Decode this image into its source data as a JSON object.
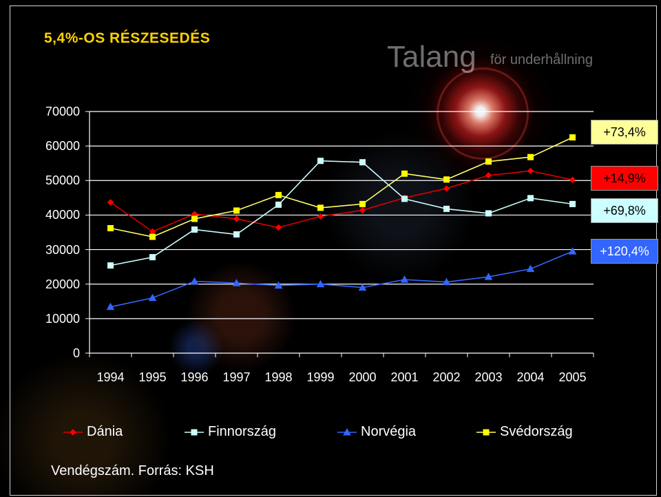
{
  "slide": {
    "title": "5,4%-OS RÉSZESEDÉS",
    "logo_text": "Talang",
    "logo_sub": "för underhållning",
    "footnote": "Vendégszám. Forrás: KSH"
  },
  "annotations": [
    {
      "text": "+73,4%",
      "bg": "#ffff99",
      "color": "#000000"
    },
    {
      "text": "+14,9%",
      "bg": "#ff0000",
      "color": "#000000"
    },
    {
      "text": "+69,8%",
      "bg": "#ccffff",
      "color": "#000000"
    },
    {
      "text": "+120,4%",
      "bg": "#3366ff",
      "color": "#ffffff"
    }
  ],
  "chart_data": {
    "type": "line",
    "categories": [
      "1994",
      "1995",
      "1996",
      "1997",
      "1998",
      "1999",
      "2000",
      "2001",
      "2002",
      "2003",
      "2004",
      "2005"
    ],
    "ylim": [
      0,
      70000
    ],
    "yticks": [
      "0",
      "10000",
      "20000",
      "30000",
      "40000",
      "50000",
      "60000",
      "70000"
    ],
    "grid": true,
    "legend_position": "bottom",
    "series": [
      {
        "name": "Dánia",
        "color": "#ff0000",
        "line_color": "#e00000",
        "marker": "diamond",
        "values": [
          43700,
          35200,
          40300,
          38900,
          36400,
          39600,
          41400,
          45000,
          47700,
          51500,
          52800,
          50200
        ]
      },
      {
        "name": "Finnország",
        "color": "#ccffff",
        "line_color": "#ccffff",
        "marker": "square",
        "values": [
          25400,
          27800,
          35800,
          34400,
          43000,
          55700,
          55300,
          44700,
          41800,
          40500,
          44900,
          43200
        ]
      },
      {
        "name": "Norvégia",
        "color": "#3366ff",
        "line_color": "#3366ff",
        "marker": "triangle",
        "values": [
          13400,
          16000,
          20800,
          20300,
          19600,
          20000,
          19000,
          21300,
          20600,
          22100,
          24400,
          29500
        ]
      },
      {
        "name": "Svédország",
        "color": "#ffff00",
        "line_color": "#ffff66",
        "marker": "square",
        "values": [
          36200,
          33700,
          38900,
          41300,
          45800,
          42100,
          43200,
          52000,
          50300,
          55500,
          56800,
          62500
        ]
      }
    ]
  }
}
